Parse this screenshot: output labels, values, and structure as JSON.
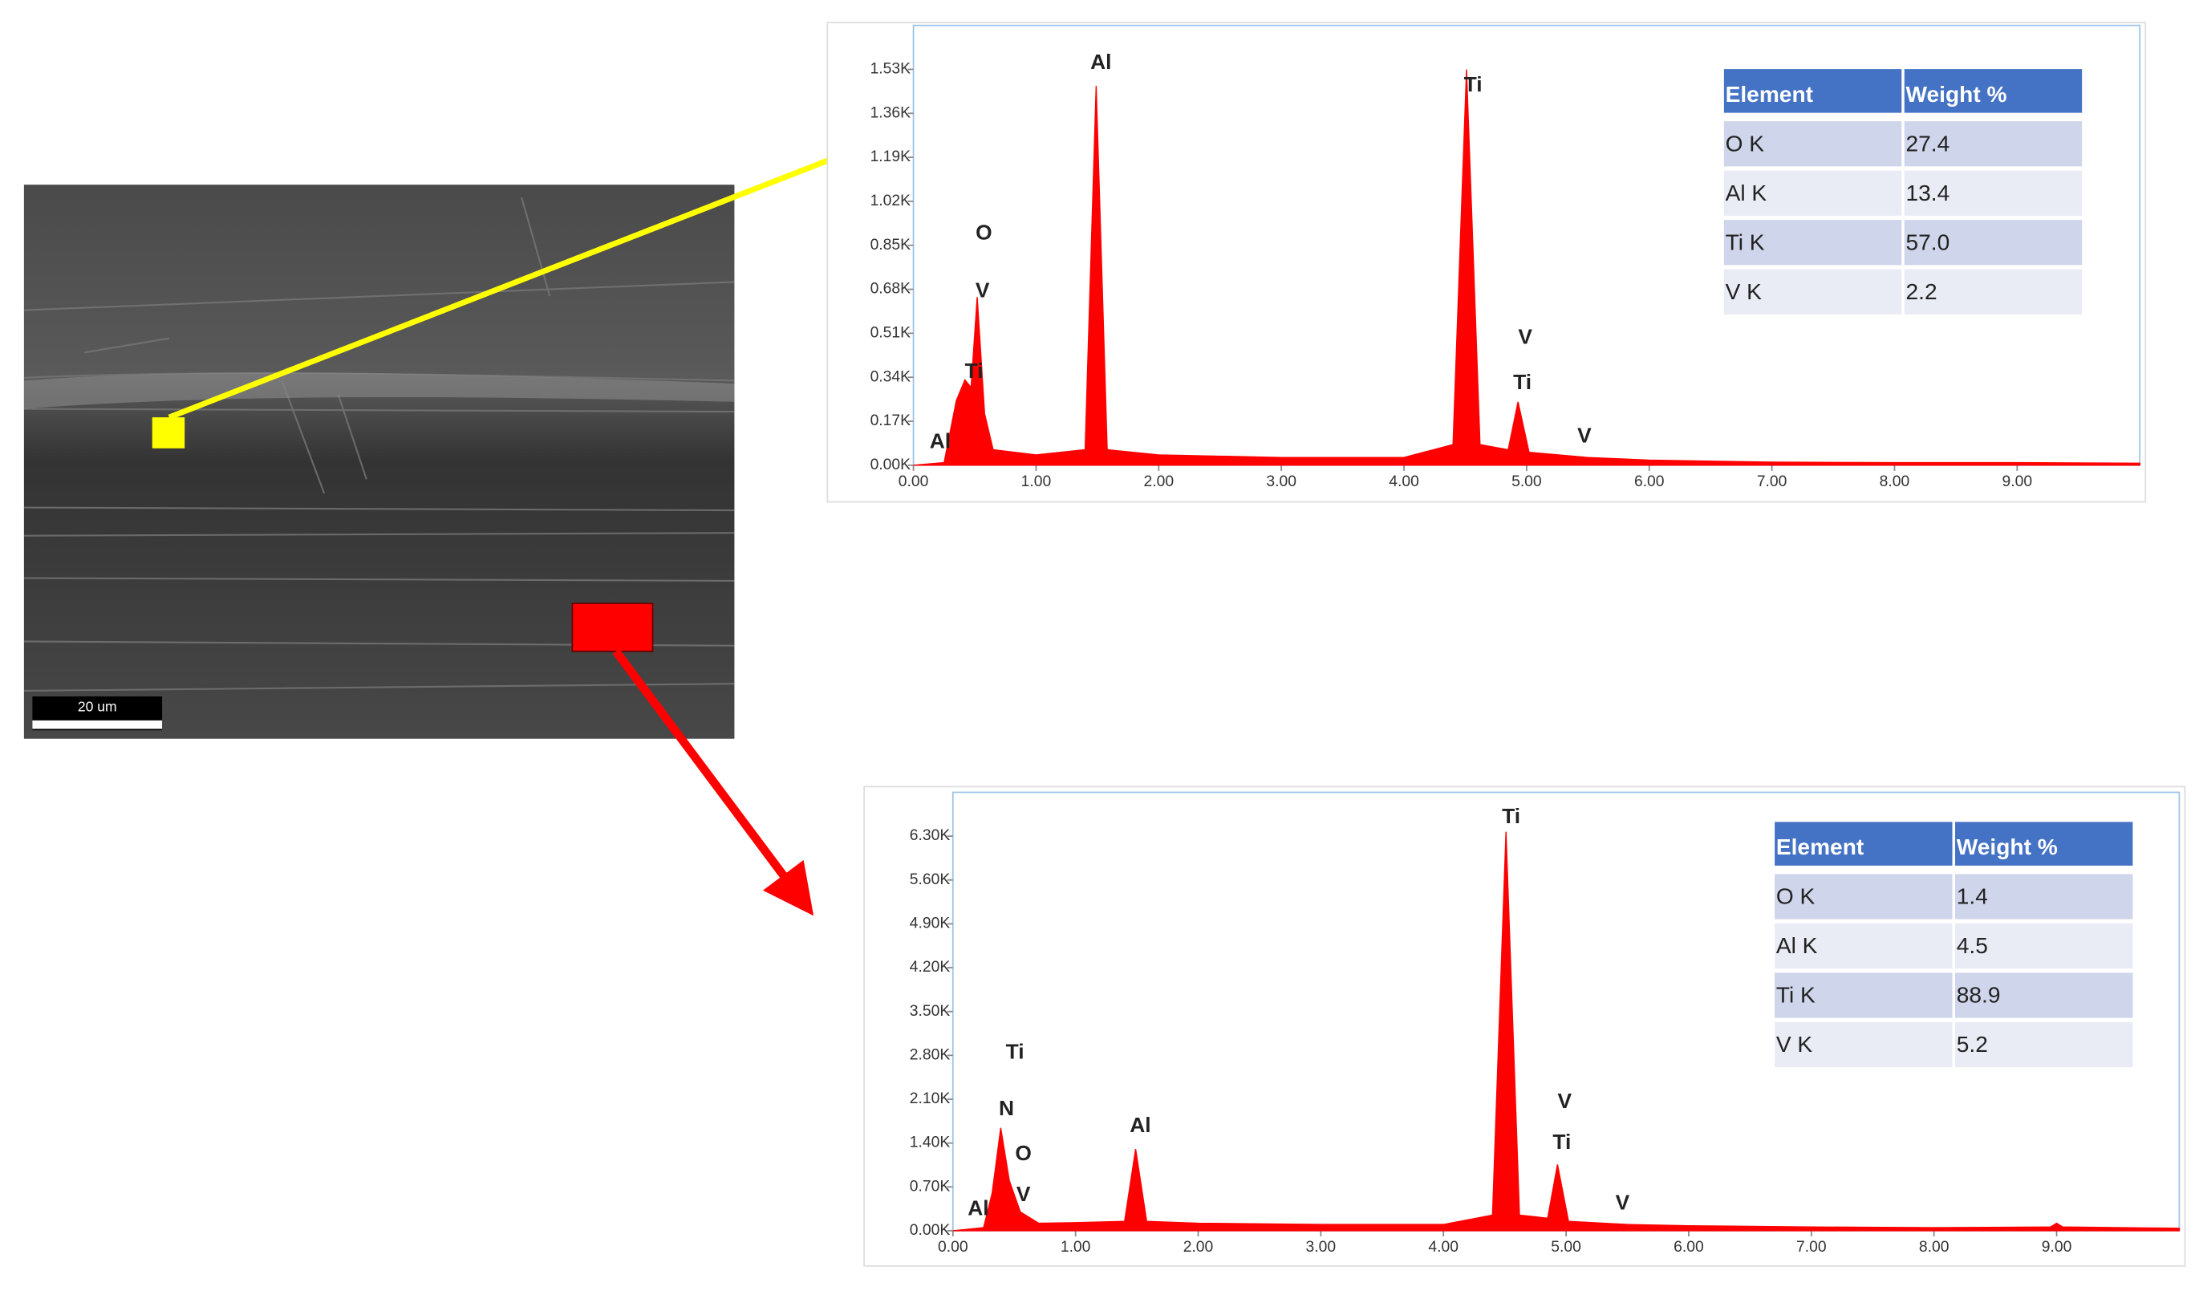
{
  "sem": {
    "scale_bar": "20 um"
  },
  "chart_data": [
    {
      "type": "area",
      "color": "#ff0000",
      "x": [
        0,
        0.25,
        0.35,
        0.42,
        0.47,
        0.52,
        0.58,
        0.65,
        1.0,
        1.4,
        1.49,
        1.58,
        2.0,
        3.0,
        4.0,
        4.4,
        4.51,
        4.62,
        4.85,
        4.93,
        5.02,
        5.5,
        6.0,
        7.0,
        8.0,
        9.0,
        10.0
      ],
      "values": [
        0,
        10,
        250,
        330,
        300,
        650,
        200,
        60,
        40,
        60,
        1466,
        60,
        40,
        30,
        30,
        80,
        1530,
        80,
        60,
        245,
        50,
        30,
        20,
        12,
        10,
        10,
        8
      ],
      "xlim": [
        0,
        10
      ],
      "ylim": [
        0,
        1700
      ],
      "xticks": [
        {
          "value": 0,
          "label": "0.00"
        },
        {
          "value": 1,
          "label": "1.00"
        },
        {
          "value": 2,
          "label": "2.00"
        },
        {
          "value": 3,
          "label": "3.00"
        },
        {
          "value": 4,
          "label": "4.00"
        },
        {
          "value": 5,
          "label": "5.00"
        },
        {
          "value": 6,
          "label": "6.00"
        },
        {
          "value": 7,
          "label": "7.00"
        },
        {
          "value": 8,
          "label": "8.00"
        },
        {
          "value": 9,
          "label": "9.00"
        }
      ],
      "yticks": [
        {
          "value": 0,
          "label": "0.00K"
        },
        {
          "value": 170,
          "label": "0.17K"
        },
        {
          "value": 340,
          "label": "0.34K"
        },
        {
          "value": 510,
          "label": "0.51K"
        },
        {
          "value": 680,
          "label": "0.68K"
        },
        {
          "value": 850,
          "label": "0.85K"
        },
        {
          "value": 1020,
          "label": "1.02K"
        },
        {
          "value": 1190,
          "label": "1.19K"
        },
        {
          "value": 1360,
          "label": "1.36K"
        },
        {
          "value": 1530,
          "label": "1.53K"
        }
      ],
      "annotations": [
        "Al",
        "O",
        "V",
        "Ti",
        "Al",
        "Ti",
        "V",
        "Ti",
        "V"
      ],
      "table": {
        "header": [
          "Element",
          "Weight %"
        ],
        "rows": [
          [
            "O K",
            "27.4"
          ],
          [
            "Al K",
            "13.4"
          ],
          [
            "Ti K",
            "57.0"
          ],
          [
            "V K",
            "2.2"
          ]
        ]
      }
    },
    {
      "type": "area",
      "color": "#ff0000",
      "x": [
        0,
        0.25,
        0.32,
        0.39,
        0.46,
        0.55,
        0.7,
        1.0,
        1.4,
        1.49,
        1.58,
        2.0,
        3.0,
        4.0,
        4.4,
        4.51,
        4.62,
        4.85,
        4.93,
        5.02,
        5.5,
        6.0,
        7.0,
        8.0,
        8.95,
        9.0,
        9.05,
        10.0
      ],
      "values": [
        0,
        50,
        600,
        1643,
        800,
        300,
        120,
        130,
        150,
        1305,
        150,
        120,
        100,
        100,
        250,
        6370,
        250,
        200,
        1058,
        150,
        100,
        80,
        60,
        50,
        60,
        120,
        60,
        40
      ],
      "xlim": [
        0,
        10
      ],
      "ylim": [
        0,
        7000
      ],
      "xticks": [
        {
          "value": 0,
          "label": "0.00"
        },
        {
          "value": 1,
          "label": "1.00"
        },
        {
          "value": 2,
          "label": "2.00"
        },
        {
          "value": 3,
          "label": "3.00"
        },
        {
          "value": 4,
          "label": "4.00"
        },
        {
          "value": 5,
          "label": "5.00"
        },
        {
          "value": 6,
          "label": "6.00"
        },
        {
          "value": 7,
          "label": "7.00"
        },
        {
          "value": 8,
          "label": "8.00"
        },
        {
          "value": 9,
          "label": "9.00"
        }
      ],
      "yticks": [
        {
          "value": 0,
          "label": "0.00K"
        },
        {
          "value": 700,
          "label": "0.70K"
        },
        {
          "value": 1400,
          "label": "1.40K"
        },
        {
          "value": 2100,
          "label": "2.10K"
        },
        {
          "value": 2800,
          "label": "2.80K"
        },
        {
          "value": 3500,
          "label": "3.50K"
        },
        {
          "value": 4200,
          "label": "4.20K"
        },
        {
          "value": 4900,
          "label": "4.90K"
        },
        {
          "value": 5600,
          "label": "5.60K"
        },
        {
          "value": 6300,
          "label": "6.30K"
        }
      ],
      "annotations": [
        "Ti",
        "Ti",
        "N",
        "O",
        "V",
        "Al",
        "Al",
        "V",
        "Ti",
        "V"
      ],
      "table": {
        "header": [
          "Element",
          "Weight %"
        ],
        "rows": [
          [
            "O K",
            "1.4"
          ],
          [
            "Al K",
            "4.5"
          ],
          [
            "Ti K",
            "88.9"
          ],
          [
            "V K",
            "5.2"
          ]
        ]
      }
    }
  ]
}
